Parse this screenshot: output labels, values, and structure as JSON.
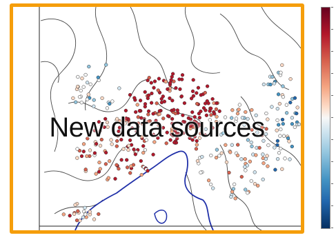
{
  "slide": {
    "headline": "New data sources"
  },
  "colors": {
    "frame_border": "#f59e0b",
    "coast_line": "#1f2fa8",
    "contour_line": "#444444",
    "colormap": "diverging red-blue (RdBu)"
  },
  "icons": {
    "map": "scatter-map-icon",
    "colorbar": "colorbar-icon"
  }
}
